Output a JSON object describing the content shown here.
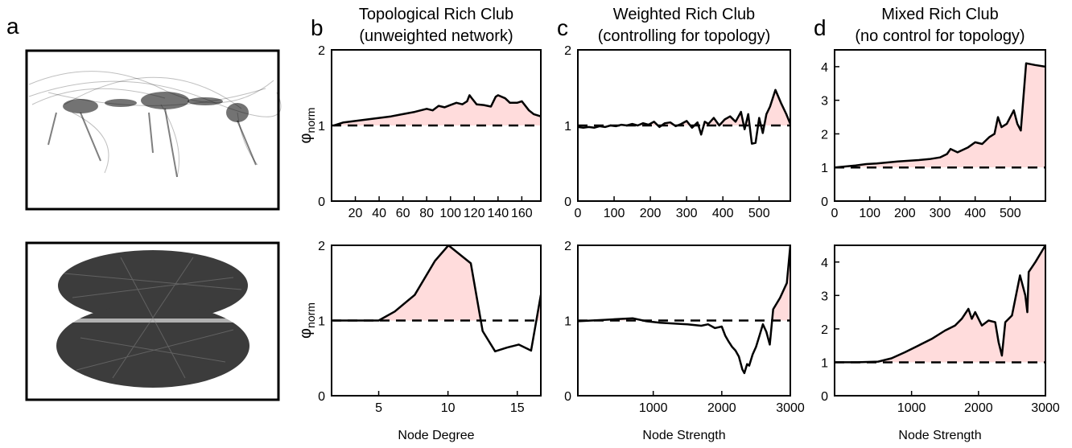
{
  "panel_a": {
    "label": "a"
  },
  "chart_data": [
    {
      "type": "line",
      "panel": "b",
      "title": "Topological Rich Club",
      "subtitle": "(unweighted network)",
      "ylabel": "φ",
      "ylabel_sub": "norm",
      "x": [
        2,
        10,
        20,
        30,
        40,
        50,
        60,
        70,
        80,
        85,
        90,
        95,
        100,
        105,
        110,
        114,
        116,
        118,
        122,
        128,
        134,
        138,
        140,
        146,
        150,
        156,
        160,
        166,
        170,
        176
      ],
      "series": [
        {
          "color": "#000000",
          "values": [
            1.0,
            1.04,
            1.06,
            1.08,
            1.1,
            1.12,
            1.15,
            1.18,
            1.22,
            1.2,
            1.26,
            1.24,
            1.27,
            1.3,
            1.28,
            1.32,
            1.4,
            1.36,
            1.28,
            1.27,
            1.25,
            1.38,
            1.4,
            1.36,
            1.3,
            1.3,
            1.32,
            1.2,
            1.15,
            1.12
          ]
        }
      ],
      "xlim": [
        0,
        176
      ],
      "ylim": [
        0,
        2
      ],
      "xticks": [
        20,
        40,
        60,
        80,
        100,
        120,
        140,
        160
      ],
      "yticks": [
        0,
        1,
        2
      ],
      "reference": 1,
      "fill_color": "#ffdcdc"
    },
    {
      "type": "line",
      "panel": "c",
      "title": "Weighted Rich Club",
      "subtitle": "(controlling for topology)",
      "x": [
        0,
        15,
        30,
        45,
        60,
        75,
        90,
        105,
        120,
        135,
        150,
        165,
        180,
        195,
        210,
        225,
        240,
        255,
        270,
        285,
        300,
        315,
        330,
        340,
        350,
        360,
        375,
        390,
        405,
        420,
        435,
        450,
        460,
        470,
        480,
        490,
        500,
        510,
        520,
        530,
        545,
        560,
        575,
        586
      ],
      "series": [
        {
          "color": "#000000",
          "values": [
            0.98,
            0.97,
            0.98,
            0.97,
            0.99,
            0.98,
            1.0,
            0.99,
            1.01,
            1.0,
            1.02,
            1.0,
            1.03,
            1.01,
            1.05,
            0.98,
            1.03,
            1.04,
            0.99,
            1.02,
            1.06,
            0.97,
            1.04,
            0.88,
            1.05,
            1.02,
            1.1,
            1.0,
            1.08,
            1.12,
            1.05,
            1.18,
            0.95,
            1.15,
            0.76,
            0.77,
            1.1,
            0.9,
            1.15,
            1.25,
            1.47,
            1.3,
            1.15,
            1.02
          ]
        }
      ],
      "xlim": [
        0,
        586
      ],
      "ylim": [
        0,
        2
      ],
      "xticks": [
        0,
        100,
        200,
        300,
        400,
        500
      ],
      "yticks": [
        0,
        1,
        2
      ],
      "reference": 1,
      "fill_color": "#ffdcdc"
    },
    {
      "type": "line",
      "panel": "d",
      "title": "Mixed Rich Club",
      "subtitle": "(no control for topology)",
      "x": [
        0,
        30,
        60,
        90,
        120,
        150,
        180,
        210,
        240,
        270,
        300,
        320,
        330,
        350,
        380,
        400,
        420,
        440,
        455,
        465,
        475,
        490,
        510,
        520,
        530,
        545,
        570,
        600
      ],
      "series": [
        {
          "color": "#000000",
          "values": [
            1.0,
            1.03,
            1.06,
            1.1,
            1.12,
            1.15,
            1.18,
            1.2,
            1.22,
            1.25,
            1.3,
            1.4,
            1.55,
            1.45,
            1.6,
            1.75,
            1.7,
            1.9,
            2.0,
            2.5,
            2.2,
            2.3,
            2.7,
            2.3,
            2.1,
            4.1,
            4.05,
            4.0
          ]
        }
      ],
      "xlim": [
        0,
        600
      ],
      "ylim": [
        0,
        4.5
      ],
      "xticks": [
        0,
        100,
        200,
        300,
        400,
        500
      ],
      "yticks": [
        0,
        1,
        2,
        3,
        4
      ],
      "reference": 1,
      "fill_color": "#ffdcdc"
    },
    {
      "type": "line",
      "xlabel": "Node Degree",
      "ylabel": "φ",
      "ylabel_sub": "norm",
      "x": [
        1.7,
        3,
        5,
        6.16,
        7.6,
        9.05,
        10.03,
        11.65,
        12.5,
        13.4,
        14.25,
        15.1,
        16.0,
        16.7
      ],
      "series": [
        {
          "color": "#000000",
          "values": [
            1.0,
            1.0,
            1.0,
            1.12,
            1.34,
            1.79,
            2.0,
            1.76,
            0.86,
            0.59,
            0.64,
            0.68,
            0.6,
            1.34
          ]
        }
      ],
      "xlim": [
        1.6,
        16.7
      ],
      "ylim": [
        0,
        2
      ],
      "xticks": [
        5,
        10,
        15
      ],
      "yticks": [
        0,
        1,
        2
      ],
      "reference": 1,
      "fill_color": "#ffdcdc"
    },
    {
      "type": "line",
      "xlabel": "Node Strength",
      "x": [
        -100,
        100,
        300,
        500,
        700,
        900,
        1100,
        1300,
        1500,
        1700,
        1800,
        1900,
        2000,
        2050,
        2100,
        2150,
        2200,
        2250,
        2300,
        2330,
        2370,
        2400,
        2450,
        2500,
        2550,
        2600,
        2650,
        2700,
        2750,
        2850,
        2950,
        3000
      ],
      "series": [
        {
          "color": "#000000",
          "values": [
            0.99,
            1.0,
            1.01,
            1.02,
            1.03,
            0.99,
            0.97,
            0.96,
            0.95,
            0.93,
            0.95,
            0.9,
            0.92,
            0.8,
            0.72,
            0.65,
            0.6,
            0.52,
            0.35,
            0.3,
            0.42,
            0.4,
            0.55,
            0.65,
            0.8,
            0.95,
            0.85,
            0.68,
            1.15,
            1.3,
            1.5,
            2.0
          ]
        }
      ],
      "xlim": [
        -100,
        3000
      ],
      "ylim": [
        0,
        2
      ],
      "xticks": [
        1000,
        2000,
        3000
      ],
      "yticks": [
        0,
        1,
        2
      ],
      "reference": 1,
      "fill_color": "#ffdcdc"
    },
    {
      "type": "line",
      "xlabel": "Node Strength",
      "x": [
        -150,
        200,
        500,
        700,
        900,
        1100,
        1300,
        1500,
        1650,
        1750,
        1850,
        1900,
        1950,
        2050,
        2150,
        2250,
        2300,
        2350,
        2400,
        2500,
        2620,
        2700,
        2730,
        2750,
        2850,
        3000
      ],
      "series": [
        {
          "color": "#000000",
          "values": [
            1.0,
            1.0,
            1.02,
            1.12,
            1.3,
            1.5,
            1.7,
            1.95,
            2.1,
            2.3,
            2.6,
            2.3,
            2.5,
            2.1,
            2.25,
            2.2,
            1.6,
            1.2,
            2.2,
            2.4,
            3.6,
            3.0,
            2.5,
            3.7,
            4.0,
            4.5
          ]
        }
      ],
      "xlim": [
        -150,
        3000
      ],
      "ylim": [
        0,
        4.5
      ],
      "xticks": [
        1000,
        2000,
        3000
      ],
      "yticks": [
        0,
        1,
        2,
        3,
        4
      ],
      "reference": 1,
      "fill_color": "#ffdcdc"
    }
  ]
}
